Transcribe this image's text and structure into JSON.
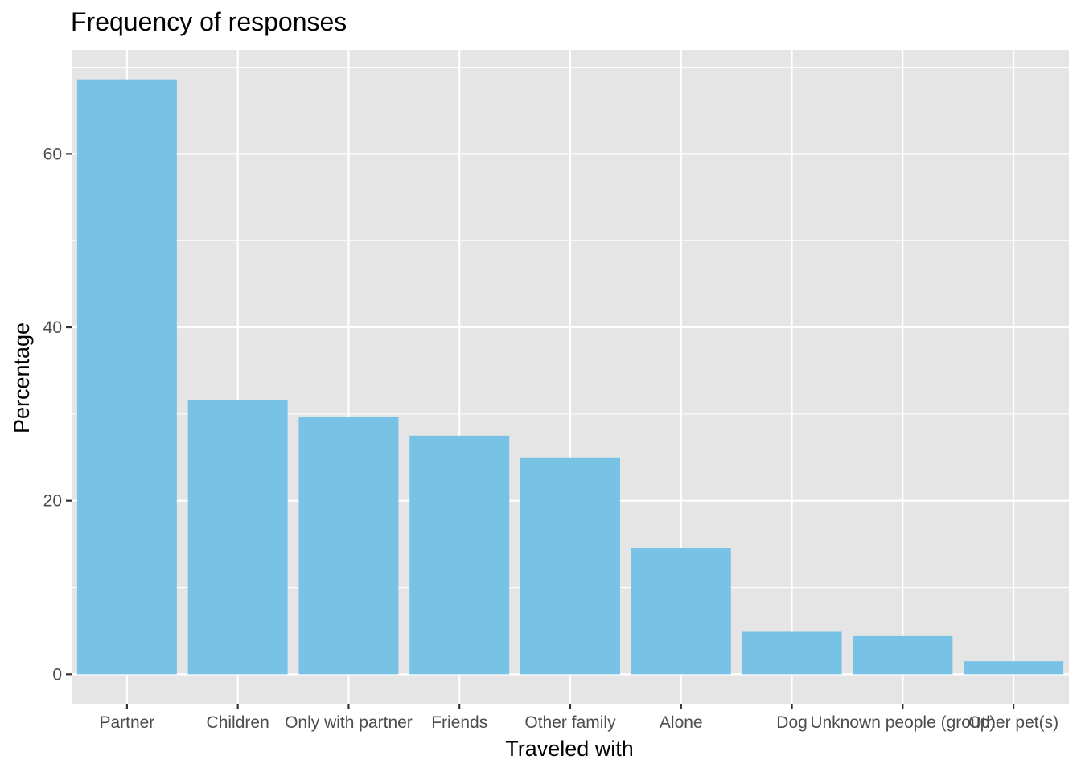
{
  "chart_data": {
    "type": "bar",
    "title": "Frequency of responses",
    "xlabel": "Traveled with",
    "ylabel": "Percentage",
    "categories": [
      "Partner",
      "Children",
      "Only with partner",
      "Friends",
      "Other family",
      "Alone",
      "Dog",
      "Unknown people (group)",
      "Other pet(s)"
    ],
    "values": [
      68.6,
      31.6,
      29.7,
      27.5,
      25.0,
      14.5,
      4.9,
      4.4,
      1.5
    ],
    "ylim": [
      -3.4,
      72.0
    ],
    "yticks": [
      0,
      20,
      40,
      60
    ],
    "ytick_labels": [
      "0",
      "20",
      "40",
      "60"
    ],
    "grid": true,
    "legend": "none",
    "colors": {
      "bar": "#78c2e5",
      "panel": "#e5e5e5",
      "grid": "#ffffff",
      "tick": "#333333"
    }
  }
}
